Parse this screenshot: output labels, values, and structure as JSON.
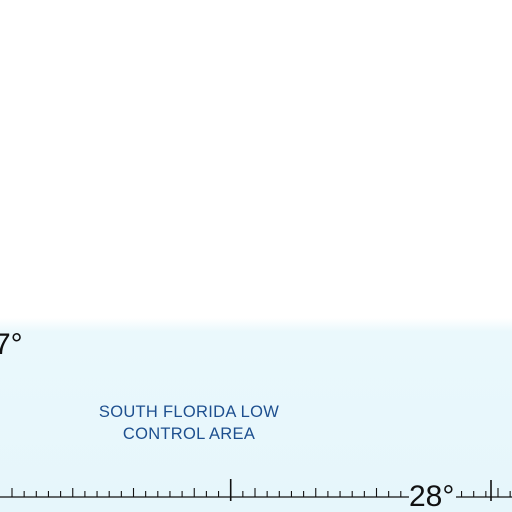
{
  "map": {
    "airspace": {
      "name_line1": "SOUTH FLORIDA LOW",
      "name_line2": "CONTROL AREA",
      "fill_color": "#e6f6fb",
      "label_color": "#1d4f8f"
    },
    "latitude_labels": {
      "left": "7°",
      "right": "28°"
    },
    "scale_color": "#111111"
  }
}
